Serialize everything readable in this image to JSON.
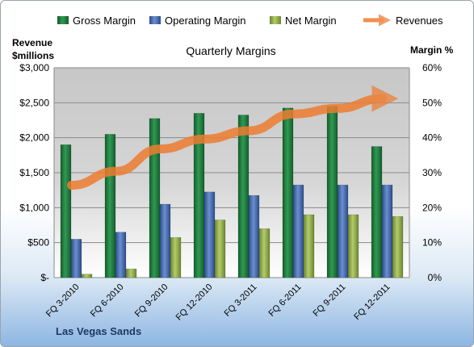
{
  "chart_data": {
    "type": "bar",
    "title": "Quarterly Margins",
    "company": "Las Vegas Sands",
    "ylabel_left": [
      "Revenue",
      "$millions"
    ],
    "ylabel_right": "Margin %",
    "ylim_left": [
      0,
      3000
    ],
    "ylim_right": [
      0,
      60
    ],
    "yticks_left": [
      "$-",
      "$500",
      "$1,000",
      "$1,500",
      "$2,000",
      "$2,500",
      "$3,000"
    ],
    "yticks_right": [
      "0%",
      "10%",
      "20%",
      "30%",
      "40%",
      "50%",
      "60%"
    ],
    "grid": true,
    "legend_position": "top",
    "categories": [
      "FQ 3-2010",
      "FQ 6-2010",
      "FQ 9-2010",
      "FQ 12-2010",
      "FQ 3-2011",
      "FQ 6-2011",
      "FQ 9-2011",
      "FQ 12-2011"
    ],
    "series": [
      {
        "name": "Gross Margin",
        "type": "bar",
        "axis": "right",
        "color": "#1e7a3e",
        "values": [
          38,
          41,
          45.5,
          47,
          46.5,
          48.5,
          49,
          37.5
        ]
      },
      {
        "name": "Operating Margin",
        "type": "bar",
        "axis": "right",
        "color": "#4a6fb0",
        "values": [
          11,
          13,
          21,
          24.5,
          23.5,
          26.5,
          26.5,
          26.5
        ]
      },
      {
        "name": "Net Margin",
        "type": "bar",
        "axis": "right",
        "color": "#93b04a",
        "values": [
          1,
          2.5,
          11.5,
          16.5,
          14,
          18,
          18,
          17.5
        ]
      },
      {
        "name": "Revenues",
        "type": "line",
        "axis": "left",
        "color": "#ed7d31",
        "values": [
          1320,
          1520,
          1840,
          1980,
          2100,
          2340,
          2420,
          2560
        ]
      }
    ]
  }
}
